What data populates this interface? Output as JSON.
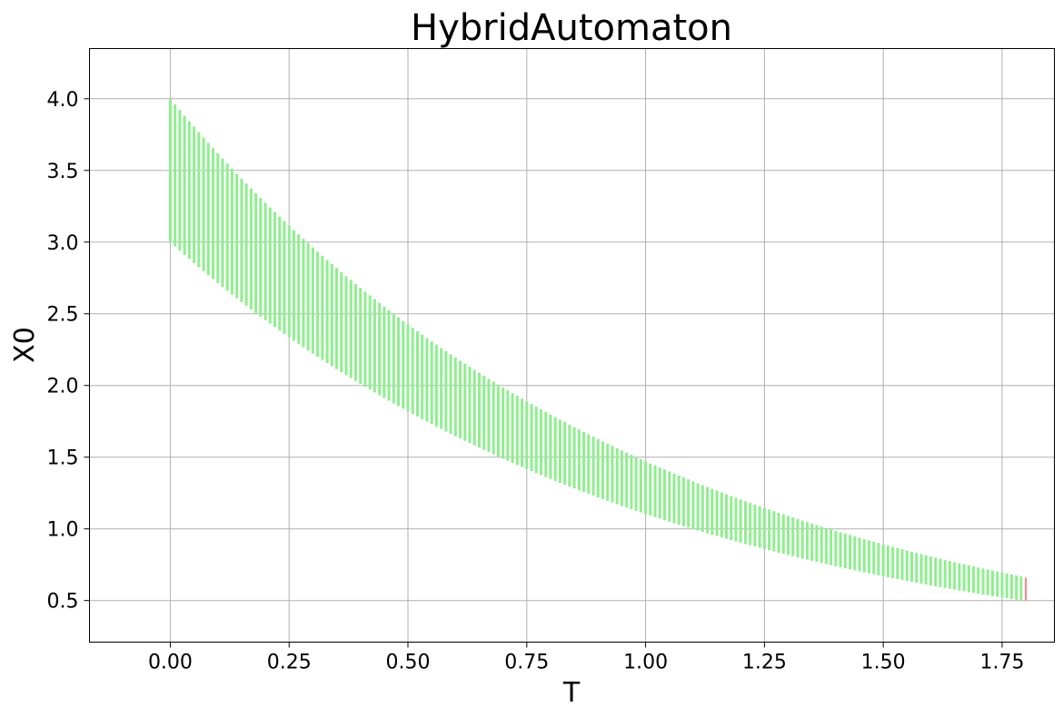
{
  "chart_data": {
    "type": "reachable-set-intervals",
    "title": "HybridAutomaton",
    "xlabel": "T",
    "ylabel": "X0",
    "xlim": [
      -0.17,
      1.86
    ],
    "ylim": [
      0.21,
      4.35
    ],
    "xticks": [
      "0.00",
      "0.25",
      "0.50",
      "0.75",
      "1.00",
      "1.25",
      "1.50",
      "1.75"
    ],
    "yticks": [
      "0.5",
      "1.0",
      "1.5",
      "2.0",
      "2.5",
      "3.0",
      "3.5",
      "4.0"
    ],
    "grid": true,
    "series": [
      {
        "color": "#90ee90",
        "description_type": "interval-bands",
        "t_start": 0.0,
        "t_end": 1.79,
        "t_step": 0.01,
        "lower_at_t0": 3.0,
        "upper_at_t0": 4.0,
        "lower_at_t_end": 0.5,
        "upper_at_t_end": 0.67,
        "decay_rate": 1.0
      },
      {
        "color": "#ff7f7f",
        "description_type": "final-interval",
        "t": 1.8,
        "lower": 0.5,
        "upper": 0.66
      }
    ]
  }
}
